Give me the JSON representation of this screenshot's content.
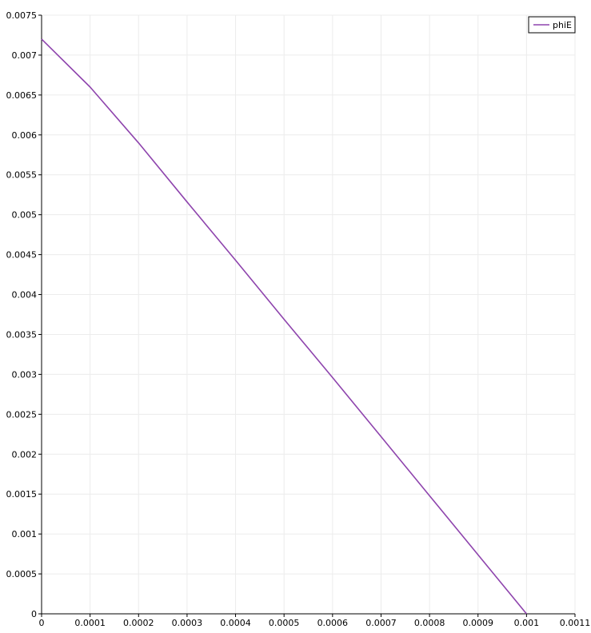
{
  "chart_data": {
    "type": "line",
    "title": "",
    "xlabel": "",
    "ylabel": "",
    "xlim": [
      0,
      0.0011
    ],
    "ylim": [
      0,
      0.0075
    ],
    "x_ticks": [
      "0",
      "0.0001",
      "0.0002",
      "0.0003",
      "0.0004",
      "0.0005",
      "0.0006",
      "0.0007",
      "0.0008",
      "0.0009",
      "0.001",
      "0.0011"
    ],
    "y_ticks": [
      "0",
      "0.0005",
      "0.001",
      "0.0015",
      "0.002",
      "0.0025",
      "0.003",
      "0.0035",
      "0.004",
      "0.0045",
      "0.005",
      "0.0055",
      "0.006",
      "0.0065",
      "0.007",
      "0.0075"
    ],
    "grid": true,
    "legend_position": "top-right",
    "series": [
      {
        "name": "phiE",
        "color": "#8e44ad",
        "x": [
          0,
          0.0001,
          0.0002,
          0.0003,
          0.0004,
          0.0005,
          0.0006,
          0.0007,
          0.0008,
          0.0009,
          0.001
        ],
        "values": [
          0.0072,
          0.0066,
          0.0059,
          0.00516,
          0.00443,
          0.00369,
          0.00296,
          0.00222,
          0.00148,
          0.00074,
          0.0
        ]
      }
    ]
  }
}
